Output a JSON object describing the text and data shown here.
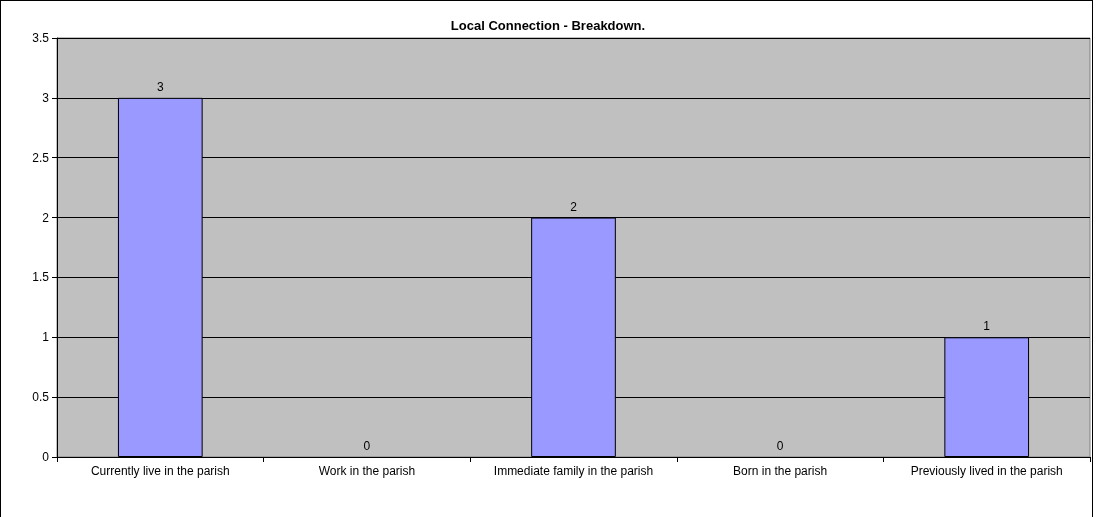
{
  "chart_data": {
    "type": "bar",
    "title": "Local Connection - Breakdown.",
    "categories": [
      "Currently live in the parish",
      "Work in the parish",
      "Immediate family in the parish",
      "Born in the parish",
      "Previously lived in the parish"
    ],
    "values": [
      3,
      0,
      2,
      0,
      1
    ],
    "color": "#9999ff",
    "ylim": [
      0,
      3.5
    ],
    "yticks": [
      0,
      0.5,
      1,
      1.5,
      2,
      2.5,
      3,
      3.5
    ],
    "grid": "y",
    "data_labels": true
  }
}
